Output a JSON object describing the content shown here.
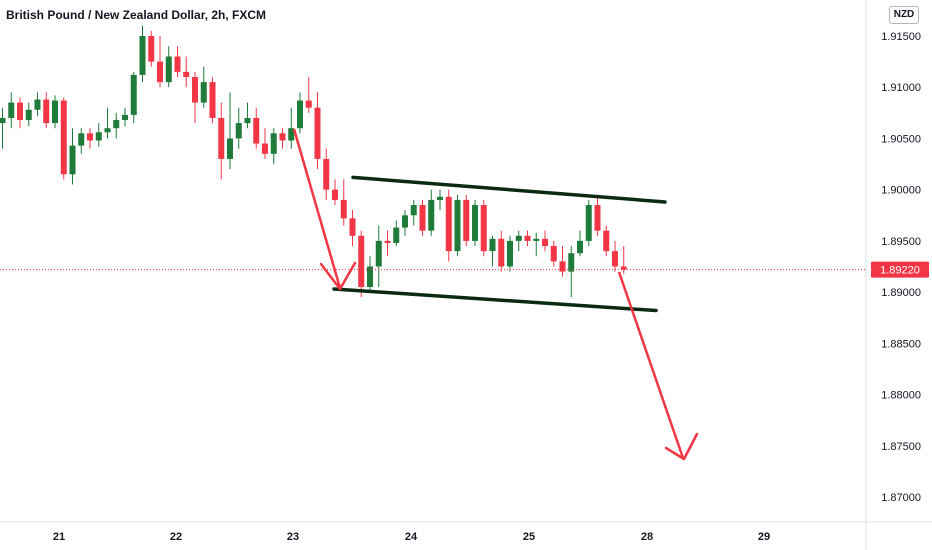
{
  "header": {
    "title": "British Pound / New Zealand Dollar, 2h, FXCM",
    "currency_label": "NZD"
  },
  "chart_data": {
    "type": "candlestick",
    "title": "British Pound / New Zealand Dollar, 2h, FXCM",
    "symbol": "GBPNZD",
    "interval": "2h",
    "source": "FXCM",
    "quote_currency": "NZD",
    "ylim": [
      1.8675,
      1.9175
    ],
    "y_ticks": [
      "1.91500",
      "1.91000",
      "1.90500",
      "1.90000",
      "1.89500",
      "1.89000",
      "1.88500",
      "1.88000",
      "1.87500",
      "1.87000"
    ],
    "x_ticks": [
      "21",
      "22",
      "23",
      "24",
      "25",
      "28",
      "29"
    ],
    "last_price": "1.89220",
    "colors": {
      "up": "#1e7b3a",
      "down": "#f23645",
      "price_line": "#f23645",
      "annotation_arrow": "#f23645",
      "channel_line": "#0b2a12"
    },
    "candles": [
      [
        1.9065,
        1.908,
        1.904,
        1.907
      ],
      [
        1.907,
        1.9095,
        1.906,
        1.9085
      ],
      [
        1.9085,
        1.909,
        1.906,
        1.9068
      ],
      [
        1.9068,
        1.9085,
        1.9062,
        1.9078
      ],
      [
        1.9078,
        1.9095,
        1.9072,
        1.9088
      ],
      [
        1.9088,
        1.9095,
        1.906,
        1.9065
      ],
      [
        1.9065,
        1.9092,
        1.906,
        1.9087
      ],
      [
        1.9087,
        1.909,
        1.901,
        1.9015
      ],
      [
        1.9015,
        1.906,
        1.9005,
        1.9043
      ],
      [
        1.9043,
        1.906,
        1.9035,
        1.9055
      ],
      [
        1.9055,
        1.906,
        1.904,
        1.9048
      ],
      [
        1.9048,
        1.9065,
        1.9042,
        1.9056
      ],
      [
        1.9056,
        1.908,
        1.905,
        1.906
      ],
      [
        1.906,
        1.9075,
        1.905,
        1.9068
      ],
      [
        1.9068,
        1.908,
        1.9062,
        1.9073
      ],
      [
        1.9073,
        1.9115,
        1.9065,
        1.9112
      ],
      [
        1.9112,
        1.916,
        1.9105,
        1.915
      ],
      [
        1.915,
        1.9155,
        1.912,
        1.9125
      ],
      [
        1.9125,
        1.915,
        1.91,
        1.9105
      ],
      [
        1.9105,
        1.914,
        1.91,
        1.913
      ],
      [
        1.913,
        1.914,
        1.911,
        1.9115
      ],
      [
        1.9115,
        1.913,
        1.91,
        1.911
      ],
      [
        1.911,
        1.9115,
        1.9065,
        1.9085
      ],
      [
        1.9085,
        1.912,
        1.908,
        1.9105
      ],
      [
        1.9105,
        1.911,
        1.9065,
        1.907
      ],
      [
        1.907,
        1.9085,
        1.901,
        1.903
      ],
      [
        1.903,
        1.9095,
        1.902,
        1.905
      ],
      [
        1.905,
        1.908,
        1.904,
        1.9065
      ],
      [
        1.9065,
        1.9085,
        1.906,
        1.907
      ],
      [
        1.907,
        1.908,
        1.904,
        1.9045
      ],
      [
        1.9045,
        1.906,
        1.903,
        1.9035
      ],
      [
        1.9035,
        1.906,
        1.9025,
        1.9055
      ],
      [
        1.9055,
        1.906,
        1.904,
        1.9048
      ],
      [
        1.9048,
        1.908,
        1.904,
        1.906
      ],
      [
        1.906,
        1.9095,
        1.9055,
        1.9087
      ],
      [
        1.9087,
        1.911,
        1.9075,
        1.908
      ],
      [
        1.908,
        1.9095,
        1.902,
        1.903
      ],
      [
        1.903,
        1.904,
        1.899,
        1.9
      ],
      [
        1.9,
        1.901,
        1.8985,
        1.899
      ],
      [
        1.899,
        1.901,
        1.8965,
        1.8972
      ],
      [
        1.8972,
        1.898,
        1.8945,
        1.8955
      ],
      [
        1.8955,
        1.896,
        1.8895,
        1.8905
      ],
      [
        1.8905,
        1.8935,
        1.89,
        1.8925
      ],
      [
        1.8925,
        1.8965,
        1.8905,
        1.895
      ],
      [
        1.895,
        1.896,
        1.8935,
        1.8948
      ],
      [
        1.8948,
        1.897,
        1.8945,
        1.8963
      ],
      [
        1.8963,
        1.898,
        1.8955,
        1.8975
      ],
      [
        1.8975,
        1.899,
        1.8965,
        1.8985
      ],
      [
        1.8985,
        1.899,
        1.8955,
        1.896
      ],
      [
        1.896,
        1.9,
        1.8955,
        1.899
      ],
      [
        1.899,
        1.9,
        1.898,
        1.8993
      ],
      [
        1.8993,
        1.9,
        1.893,
        1.894
      ],
      [
        1.894,
        1.8995,
        1.8935,
        1.899
      ],
      [
        1.899,
        1.8995,
        1.8945,
        1.895
      ],
      [
        1.895,
        1.899,
        1.8945,
        1.8985
      ],
      [
        1.8985,
        1.899,
        1.8935,
        1.894
      ],
      [
        1.894,
        1.8955,
        1.8925,
        1.8952
      ],
      [
        1.8952,
        1.896,
        1.892,
        1.8925
      ],
      [
        1.8925,
        1.8955,
        1.892,
        1.895
      ],
      [
        1.895,
        1.896,
        1.894,
        1.8955
      ],
      [
        1.8955,
        1.896,
        1.8945,
        1.895
      ],
      [
        1.895,
        1.8958,
        1.8935,
        1.8952
      ],
      [
        1.8952,
        1.896,
        1.894,
        1.8945
      ],
      [
        1.8945,
        1.895,
        1.8925,
        1.893
      ],
      [
        1.893,
        1.8945,
        1.8915,
        1.892
      ],
      [
        1.892,
        1.8945,
        1.8895,
        1.8938
      ],
      [
        1.8938,
        1.896,
        1.8935,
        1.895
      ],
      [
        1.895,
        1.899,
        1.8945,
        1.8985
      ],
      [
        1.8985,
        1.8995,
        1.8955,
        1.896
      ],
      [
        1.896,
        1.8965,
        1.8935,
        1.894
      ],
      [
        1.894,
        1.895,
        1.892,
        1.8925
      ],
      [
        1.8925,
        1.8945,
        1.8918,
        1.8922
      ]
    ]
  }
}
